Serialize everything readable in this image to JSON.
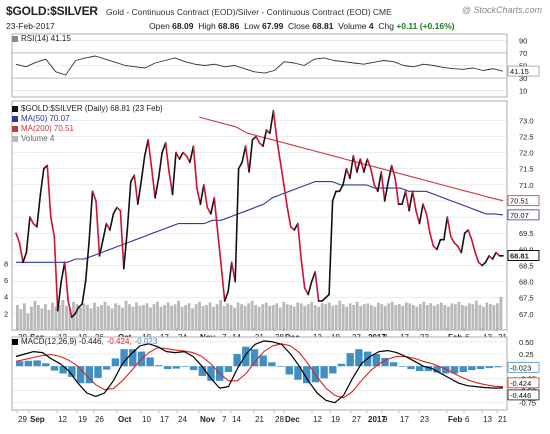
{
  "header": {
    "title": "$GOLD:$SILVER",
    "subtitle": "Gold - Continuous Contract (EOD)/Silver - Continuous Contract (EOD)  CME",
    "brand": "@ StockCharts.com",
    "date": "23-Feb-2017",
    "open_label": "Open",
    "open": "68.09",
    "high_label": "High",
    "high": "68.86",
    "low_label": "Low",
    "low": "67.99",
    "close_label": "Close",
    "close": "68.81",
    "volume_label": "Volume",
    "volume": "4",
    "chg_label": "Chg",
    "chg": "+0.11 (+0.16%)"
  },
  "legends": {
    "rsi": "RSI(14) 41.15",
    "price": "$GOLD:$SILVER (Daily) 68.81 (23 Feb)",
    "ma50": "MA(50) 70.07",
    "ma200": "MA(200) 70.51",
    "vol": "Volume 4",
    "macd_a": "MACD(12,26,9) -0.446,",
    "macd_b": "-0.424,",
    "macd_c": "-0.023"
  },
  "colors": {
    "price_up": "#111111",
    "price_down": "#cc1133",
    "ma50": "#2e3a9e",
    "ma200": "#cc3344",
    "volume": "#b8b8b8",
    "macd": "#000000",
    "signal": "#dd2222",
    "histogram": "#3e8fc4",
    "grid": "#d9d9d9"
  },
  "chart_data": [
    {
      "type": "line",
      "name_panel": "RSI",
      "ylim": [
        0,
        100
      ],
      "y_ticks": [
        "90",
        "70",
        "50",
        "30",
        "10"
      ],
      "last_value_tag": "41.15",
      "values": [
        52,
        48,
        55,
        60,
        40,
        35,
        58,
        62,
        65,
        60,
        55,
        50,
        48,
        46,
        54,
        58,
        62,
        56,
        52,
        50,
        52,
        48,
        50,
        45,
        40,
        38,
        42,
        56,
        54,
        50,
        60,
        62,
        58,
        56,
        54,
        52,
        55,
        58,
        56,
        50,
        48,
        52,
        50,
        47,
        45,
        44,
        46,
        42,
        45,
        41
      ]
    },
    {
      "type": "line",
      "name_panel": "Price",
      "ylim": [
        66.5,
        73.6
      ],
      "y_ticks": [
        "73.0",
        "72.5",
        "72.0",
        "71.5",
        "71.0",
        "70.5",
        "70.0",
        "69.5",
        "69.0",
        "68.5",
        "68.0",
        "67.5",
        "67.0"
      ],
      "value_tags": [
        "70.51",
        "70.07",
        "68.81"
      ],
      "x_labels": [
        "29",
        "Sep",
        "12",
        "19",
        "26",
        "Oct",
        "10",
        "17",
        "24",
        "Nov",
        "7",
        "14",
        "21",
        "28",
        "Dec",
        "12",
        "19",
        "27",
        "2017",
        "9",
        "17",
        "23",
        "Feb",
        "6",
        "13",
        "21"
      ],
      "series": [
        {
          "name": "$GOLD:$SILVER",
          "values": [
            69.5,
            69.2,
            68.6,
            68.9,
            70.0,
            69.8,
            69.7,
            70.7,
            71.5,
            71.6,
            70.0,
            69.4,
            67.1,
            68.0,
            68.6,
            67.4,
            66.9,
            67.0,
            67.2,
            67.3,
            68.0,
            69.2,
            70.8,
            70.5,
            68.8,
            69.3,
            69.8,
            69.6,
            70.1,
            70.3,
            70.2,
            68.4,
            69.6,
            71.1,
            71.3,
            70.4,
            71.1,
            71.9,
            72.4,
            71.5,
            70.6,
            71.2,
            72.0,
            72.3,
            71.4,
            70.7,
            72.0,
            71.8,
            72.0,
            71.9,
            71.7,
            72.2,
            70.9,
            70.4,
            71.0,
            70.3,
            70.1,
            70.6,
            69.5,
            68.5,
            67.4,
            67.7,
            68.6,
            68.0,
            71.5,
            71.7,
            72.2,
            71.4,
            72.4,
            72.5,
            72.3,
            72.2,
            72.7,
            72.6,
            73.3,
            72.4,
            71.7,
            71.0,
            70.3,
            69.7,
            69.6,
            69.8,
            68.7,
            67.8,
            67.6,
            68.0,
            68.3,
            67.4,
            67.4,
            67.5,
            67.6,
            70.5,
            70.8,
            70.8,
            71.0,
            71.5,
            71.2,
            71.9,
            71.4,
            71.8,
            71.4,
            71.8,
            71.5,
            71.0,
            70.8,
            71.4,
            70.5,
            71.1,
            71.6,
            71.2,
            70.4,
            70.4,
            70.8,
            70.2,
            70.8,
            70.2,
            69.8,
            70.4,
            70.1,
            69.5,
            69.1,
            69.0,
            69.3,
            69.3,
            70.0,
            69.4,
            69.2,
            69.1,
            68.9,
            69.5,
            69.6,
            69.3,
            68.9,
            68.6,
            68.5,
            68.6,
            68.8,
            68.7,
            68.9,
            68.8,
            68.8
          ]
        },
        {
          "name": "MA(50)",
          "values": [
            68.6,
            68.6,
            68.6,
            68.6,
            68.6,
            68.6,
            68.6,
            68.7,
            68.7,
            68.8,
            68.9,
            69.0,
            69.1,
            69.2,
            69.3,
            69.4,
            69.5,
            69.6,
            69.7,
            69.8,
            69.8,
            69.8,
            69.8,
            69.9,
            69.9,
            70.0,
            70.1,
            70.2,
            70.3,
            70.4,
            70.6,
            70.7,
            70.8,
            70.9,
            71.0,
            71.1,
            71.1,
            71.1,
            71.0,
            71.0,
            71.0,
            71.0,
            70.9,
            70.9,
            70.9,
            70.9,
            70.8,
            70.8,
            70.8,
            70.7,
            70.6,
            70.5,
            70.4,
            70.3,
            70.2,
            70.1,
            70.1,
            70.07
          ]
        },
        {
          "name": "MA(200)",
          "values": [
            73.1,
            73.0,
            72.9,
            72.8,
            72.6,
            72.5,
            72.4,
            72.3,
            72.2,
            72.1,
            72.0,
            71.9,
            71.8,
            71.7,
            71.6,
            71.5,
            71.4,
            71.3,
            71.2,
            71.1,
            71.0,
            70.9,
            70.8,
            70.7,
            70.6,
            70.51
          ]
        }
      ]
    },
    {
      "type": "bar",
      "name_panel": "Volume",
      "y_ticks": [
        "8",
        "6",
        "4",
        "2"
      ],
      "values": [
        3,
        2.5,
        3.2,
        2,
        2.8,
        3.5,
        3,
        2.6,
        3.1,
        2.4,
        3.3,
        2.8,
        3,
        3.6,
        2.9,
        2.5,
        3.4,
        3.1,
        2.7,
        3.2,
        3,
        2.6,
        3.3,
        2.8,
        3,
        3.4,
        2.9,
        2.6,
        3.2,
        3,
        2.7,
        3.5,
        3.1,
        2.8,
        3.3,
        2.9,
        3,
        3.2,
        2.7,
        3.1,
        3.4,
        2.8,
        3,
        3.3,
        2.9,
        3.1,
        3.5,
        2.8,
        3,
        3.2,
        2.6,
        3.1,
        3.4,
        2.9,
        3,
        3.3,
        2.8,
        3.1,
        3.6,
        2.9,
        3.2,
        3,
        2.7,
        3.3,
        3.1,
        2.9,
        3.2,
        3.5,
        3,
        2.8,
        3.1,
        3.3,
        2.9,
        3,
        3.2,
        2.7,
        3.4,
        3.1,
        3,
        2.8,
        3.3,
        3.2,
        2.9,
        3.1,
        3.4,
        3,
        2.8,
        3.2,
        3.1,
        3.3,
        2.9,
        3,
        3.5,
        3.1,
        2.8,
        3.2,
        3,
        3.4,
        2.9,
        3.1,
        3.2,
        3,
        2.8,
        3.3,
        3.1,
        2.9,
        3.2,
        3.4,
        3,
        3.1,
        2.9,
        3.3,
        3.2,
        3,
        2.8,
        3.1,
        3.4,
        3,
        3.2,
        2.9,
        3.1,
        3.3,
        3,
        2.8,
        3.2,
        3.1,
        3.4,
        3,
        2.9,
        3.2,
        3.1,
        3.5,
        3,
        2.8,
        3.3,
        3.1,
        3,
        3.2,
        4
      ]
    },
    {
      "type": "line",
      "name_panel": "MACD",
      "ylim": [
        -0.9,
        0.6
      ],
      "y_ticks": [
        "0.50",
        "0.25",
        "0.00",
        "-0.25",
        "-0.50",
        "-0.75"
      ],
      "value_tags": [
        "-0.023",
        "-0.424",
        "-0.446"
      ],
      "series": [
        {
          "name": "MACD",
          "values": [
            0.2,
            0.25,
            0.3,
            0.28,
            0.15,
            0.05,
            -0.1,
            -0.35,
            -0.55,
            -0.62,
            -0.55,
            -0.3,
            0.05,
            0.25,
            0.42,
            0.46,
            0.4,
            0.3,
            0.28,
            0.3,
            0.2,
            0.0,
            -0.25,
            -0.45,
            -0.42,
            -0.05,
            0.25,
            0.45,
            0.52,
            0.5,
            0.45,
            0.25,
            0.0,
            -0.3,
            -0.55,
            -0.7,
            -0.75,
            -0.6,
            -0.25,
            0.05,
            0.2,
            0.3,
            0.32,
            0.28,
            0.2,
            0.1,
            0.0,
            -0.05,
            -0.15,
            -0.25,
            -0.35,
            -0.4,
            -0.42,
            -0.44,
            -0.45,
            -0.446
          ]
        },
        {
          "name": "Signal",
          "values": [
            0.1,
            0.14,
            0.18,
            0.22,
            0.24,
            0.2,
            0.12,
            0.0,
            -0.2,
            -0.38,
            -0.48,
            -0.46,
            -0.3,
            -0.1,
            0.12,
            0.28,
            0.38,
            0.36,
            0.33,
            0.31,
            0.28,
            0.2,
            0.05,
            -0.15,
            -0.3,
            -0.3,
            -0.15,
            0.1,
            0.3,
            0.42,
            0.46,
            0.42,
            0.28,
            0.05,
            -0.22,
            -0.45,
            -0.6,
            -0.65,
            -0.52,
            -0.3,
            -0.1,
            0.05,
            0.15,
            0.2,
            0.2,
            0.16,
            0.1,
            0.05,
            -0.02,
            -0.1,
            -0.2,
            -0.28,
            -0.34,
            -0.38,
            -0.41,
            -0.424
          ]
        }
      ]
    }
  ]
}
